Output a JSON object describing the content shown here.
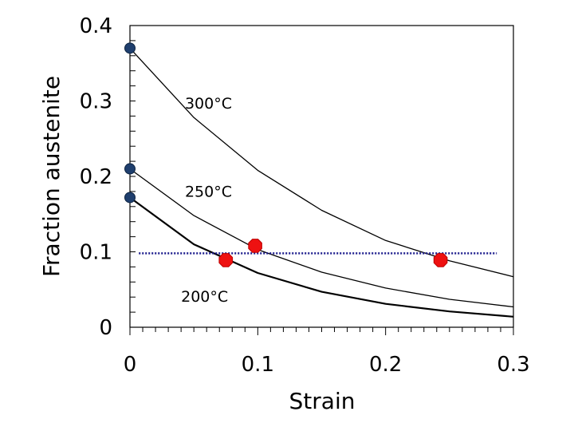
{
  "chart_data": {
    "type": "line",
    "title": "",
    "xlabel": "Strain",
    "ylabel": "Fraction austenite",
    "xlim": [
      0,
      0.3
    ],
    "ylim": [
      0,
      0.4
    ],
    "x_ticks": [
      0,
      0.1,
      0.2,
      0.3
    ],
    "x_tick_labels": [
      "0",
      "0.1",
      "0.2",
      "0.3"
    ],
    "y_ticks": [
      0,
      0.1,
      0.2,
      0.3,
      0.4
    ],
    "y_tick_labels": [
      "0",
      "0.1",
      "0.2",
      "0.3",
      "0.4"
    ],
    "grid": false,
    "series": [
      {
        "name": "300°C",
        "label": "300°C",
        "x": [
          0,
          0.05,
          0.1,
          0.15,
          0.2,
          0.25,
          0.3
        ],
        "values": [
          0.37,
          0.278,
          0.208,
          0.155,
          0.115,
          0.088,
          0.067
        ],
        "stroke_width": 1.3
      },
      {
        "name": "250°C",
        "label": "250°C",
        "x": [
          0,
          0.05,
          0.1,
          0.15,
          0.2,
          0.25,
          0.3
        ],
        "values": [
          0.21,
          0.148,
          0.103,
          0.073,
          0.052,
          0.037,
          0.027
        ],
        "stroke_width": 1.3
      },
      {
        "name": "200°C",
        "label": "200°C",
        "x": [
          0,
          0.05,
          0.1,
          0.15,
          0.2,
          0.25,
          0.3
        ],
        "values": [
          0.172,
          0.11,
          0.072,
          0.047,
          0.031,
          0.021,
          0.014
        ],
        "stroke_width": 2.2
      }
    ],
    "initial_points": [
      {
        "x": 0,
        "y": 0.37
      },
      {
        "x": 0,
        "y": 0.21
      },
      {
        "x": 0,
        "y": 0.172
      }
    ],
    "marked_points": [
      {
        "x": 0.075,
        "y": 0.089
      },
      {
        "x": 0.098,
        "y": 0.108
      },
      {
        "x": 0.243,
        "y": 0.089
      }
    ],
    "reference_line": {
      "y": 0.098,
      "x_start": 0.007,
      "x_end": 0.287
    },
    "colors": {
      "initial_point": "#1f3f6e",
      "marked_point": "#ee1111",
      "marked_point_edge": "#bb0000",
      "reference_line": "#1a1a8c",
      "curve": "#000000"
    }
  }
}
